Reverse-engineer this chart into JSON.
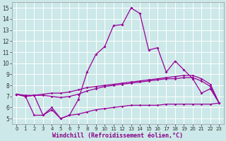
{
  "x": [
    0,
    1,
    2,
    3,
    4,
    5,
    6,
    7,
    8,
    9,
    10,
    11,
    12,
    13,
    14,
    15,
    16,
    17,
    18,
    19,
    20,
    21,
    22,
    23
  ],
  "line1": [
    7.2,
    7.0,
    7.1,
    5.3,
    5.8,
    5.0,
    5.3,
    6.7,
    9.2,
    10.8,
    11.5,
    13.4,
    13.5,
    15.0,
    14.5,
    11.2,
    11.4,
    9.2,
    10.2,
    9.4,
    8.6,
    7.3,
    7.7,
    6.4
  ],
  "line2": [
    7.2,
    7.0,
    7.1,
    7.2,
    7.3,
    7.3,
    7.4,
    7.6,
    7.8,
    7.9,
    8.0,
    8.1,
    8.2,
    8.3,
    8.4,
    8.5,
    8.6,
    8.7,
    8.8,
    8.9,
    8.9,
    8.6,
    8.1,
    6.4
  ],
  "line3": [
    7.2,
    7.1,
    7.1,
    7.1,
    7.0,
    6.9,
    7.0,
    7.2,
    7.5,
    7.7,
    7.9,
    8.0,
    8.1,
    8.2,
    8.3,
    8.4,
    8.5,
    8.6,
    8.6,
    8.7,
    8.7,
    8.4,
    7.9,
    6.4
  ],
  "line4": [
    7.2,
    7.0,
    5.3,
    5.3,
    6.0,
    5.0,
    5.3,
    5.4,
    5.6,
    5.8,
    5.9,
    6.0,
    6.1,
    6.2,
    6.2,
    6.2,
    6.2,
    6.3,
    6.3,
    6.3,
    6.3,
    6.3,
    6.3,
    6.4
  ],
  "line_color": "#990099",
  "bg_color": "#cce8e8",
  "grid_color": "#aacccc",
  "xlabel": "Windchill (Refroidissement éolien,°C)",
  "ylim": [
    4.5,
    15.5
  ],
  "xlim": [
    -0.5,
    23.5
  ],
  "yticks": [
    5,
    6,
    7,
    8,
    9,
    10,
    11,
    12,
    13,
    14,
    15
  ],
  "xticks": [
    0,
    1,
    2,
    3,
    4,
    5,
    6,
    7,
    8,
    9,
    10,
    11,
    12,
    13,
    14,
    15,
    16,
    17,
    18,
    19,
    20,
    21,
    22,
    23
  ]
}
